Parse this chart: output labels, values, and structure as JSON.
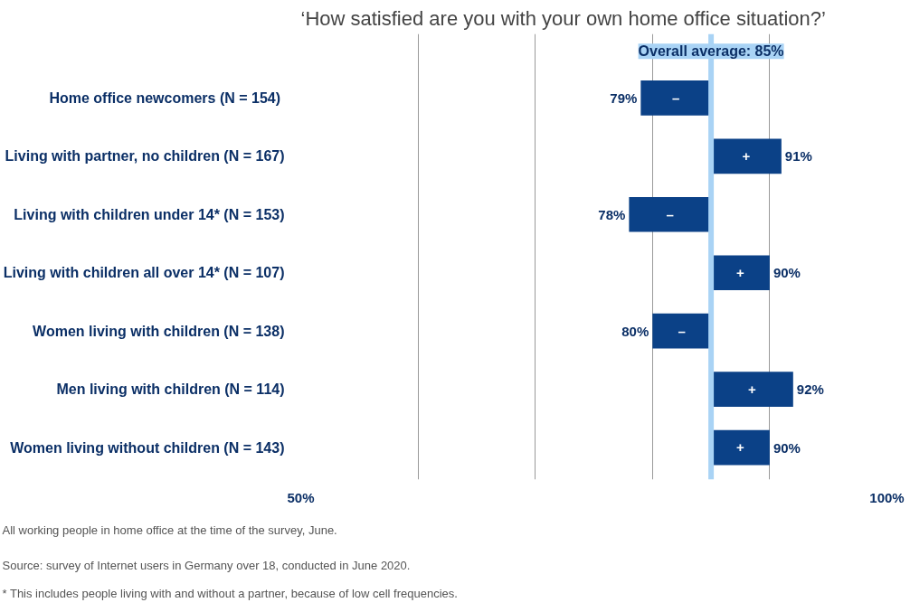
{
  "chart_data": {
    "type": "bar",
    "orientation": "horizontal",
    "title": "‘How satisfied are you with your own home office situation?’",
    "categories": [
      "Home office newcomers  (N = 154)",
      "Living with partner, no children (N = 167)",
      "Living with children under 14* (N = 153)",
      "Living with children all over 14* (N = 107)",
      "Women living with children (N = 138)",
      "Men living with children (N = 114)",
      "Women living without children (N = 143)"
    ],
    "base": [
      85,
      85,
      85,
      85,
      85,
      85,
      85
    ],
    "values": [
      -6,
      6,
      -7,
      5,
      -5,
      7,
      5
    ],
    "value_labels": [
      "79%",
      "91%",
      "78%",
      "90%",
      "80%",
      "92%",
      "90%"
    ],
    "color": "#0b4187",
    "xlim": [
      50,
      100
    ],
    "xticks": [
      {
        "value": 50,
        "label": "50%"
      },
      {
        "value": 60,
        "label": null
      },
      {
        "value": 70,
        "label": null
      },
      {
        "value": 80,
        "label": null
      },
      {
        "value": 90,
        "label": null
      },
      {
        "value": 100,
        "label": "100%"
      }
    ],
    "grid": "x",
    "ref_lines": [
      {
        "axis": "x",
        "value": 85,
        "label": "Overall average: 85%",
        "color": "#a9d3f5"
      }
    ],
    "annotations": [
      {
        "text": "–",
        "x": 79,
        "y": "Home office newcomers  (N = 154)"
      },
      {
        "text": "+",
        "x": 91,
        "y": "Living with partner, no children (N = 167)"
      },
      {
        "text": "–",
        "x": 78,
        "y": "Living with children under 14* (N = 153)"
      },
      {
        "text": "+",
        "x": 90,
        "y": "Living with children all over 14* (N = 107)"
      },
      {
        "text": "–",
        "x": 80,
        "y": "Women living with children (N = 138)"
      },
      {
        "text": "+",
        "x": 92,
        "y": "Men living with children (N = 114)"
      },
      {
        "text": "+",
        "x": 90,
        "y": "Women living without children (N = 143)"
      },
      "All working people in home office at the time of the survey, June.",
      "Source: survey of Internet users in Germany over 18, conducted in June 2020.",
      "* This includes people living with and without a partner, because of low cell frequencies."
    ]
  }
}
